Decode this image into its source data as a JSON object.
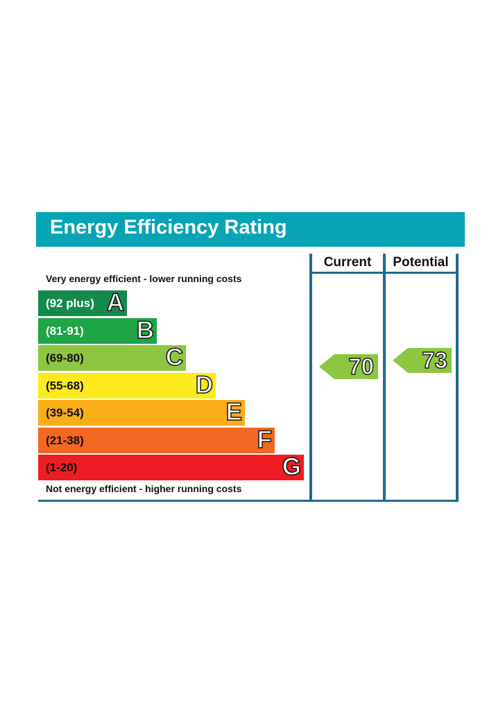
{
  "header": {
    "title": "Energy Efficiency Rating"
  },
  "columns": {
    "current": "Current",
    "potential": "Potential"
  },
  "captions": {
    "top": "Very energy efficient - lower running costs",
    "bottom": "Not energy efficient - higher running costs"
  },
  "chart_data": {
    "type": "bar",
    "title": "Energy Efficiency Rating",
    "categories": [
      "A",
      "B",
      "C",
      "D",
      "E",
      "F",
      "G"
    ],
    "ranges": [
      "(92 plus)",
      "(81-91)",
      "(69-80)",
      "(55-68)",
      "(39-54)",
      "(21-38)",
      "(1-20)"
    ],
    "colors": [
      "#138a4c",
      "#1ea546",
      "#8dc641",
      "#fdea1c",
      "#fbad18",
      "#f26721",
      "#ee1d24"
    ],
    "range_text_colors": [
      "#ffffff",
      "#ffffff",
      "#111111",
      "#111111",
      "#111111",
      "#111111",
      "#111111"
    ],
    "current": {
      "value": 70,
      "band": "C",
      "color": "#8dc641"
    },
    "potential": {
      "value": 73,
      "band": "C",
      "color": "#8dc641"
    }
  }
}
